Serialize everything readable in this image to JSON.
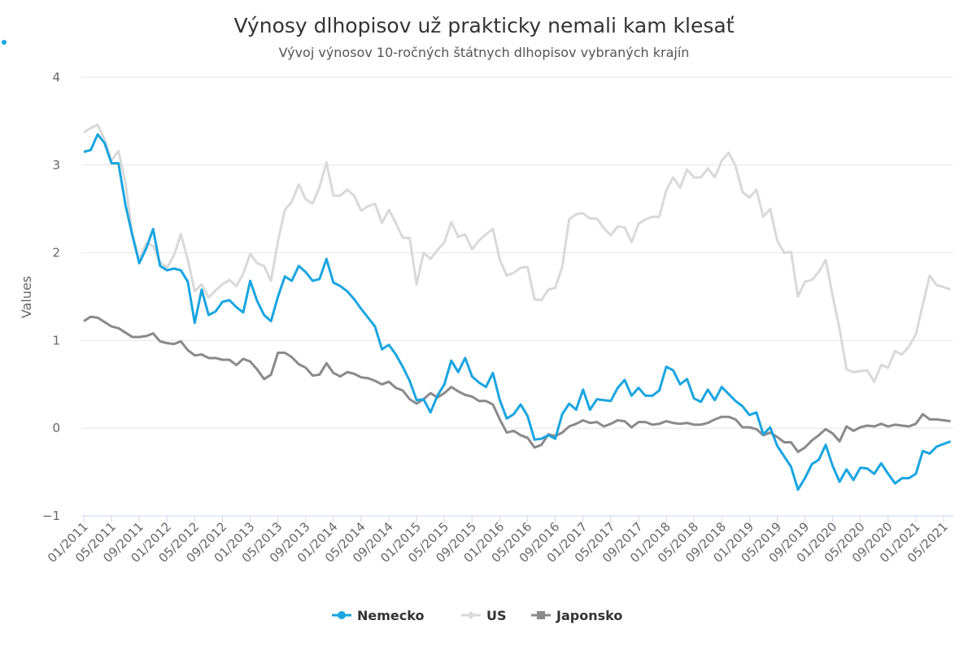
{
  "chart_data": {
    "type": "line",
    "title": "Výnosy dlhopisov už prakticky nemali kam klesať",
    "subtitle": "Vývoj výnosov 10-ročných štátnych dlhopisov vybraných krajín",
    "y_label": "Values",
    "categories": [
      "01/2011",
      null,
      null,
      null,
      "05/2011",
      null,
      null,
      null,
      "09/2011",
      null,
      null,
      null,
      "01/2012",
      null,
      null,
      null,
      "05/2012",
      null,
      null,
      null,
      "09/2012",
      null,
      null,
      null,
      "01/2013",
      null,
      null,
      null,
      "05/2013",
      null,
      null,
      null,
      "09/2013",
      null,
      null,
      null,
      "01/2014",
      null,
      null,
      null,
      "05/2014",
      null,
      null,
      null,
      "09/2014",
      null,
      null,
      null,
      "01/2015",
      null,
      null,
      null,
      "05/2015",
      null,
      null,
      null,
      "09/2015",
      null,
      null,
      null,
      "01/2016",
      null,
      null,
      null,
      "05/2016",
      null,
      null,
      null,
      "09/2016",
      null,
      null,
      null,
      "01/2017",
      null,
      null,
      null,
      "05/2017",
      null,
      null,
      null,
      "09/2017",
      null,
      null,
      null,
      "01/2018",
      null,
      null,
      null,
      "05/2018",
      null,
      null,
      null,
      "09/2018",
      null,
      null,
      null,
      "01/2019",
      null,
      null,
      null,
      "05/2019",
      null,
      null,
      null,
      "09/2019",
      null,
      null,
      null,
      "01/2020",
      null,
      null,
      null,
      "05/2020",
      null,
      null,
      null,
      "09/2020",
      null,
      null,
      null,
      "01/2021",
      null,
      null,
      null,
      "05/2021",
      null
    ],
    "series": [
      {
        "name": "Nemecko",
        "color": "#1aa5e0",
        "marker": "circle",
        "values": [
          3.15,
          3.17,
          3.35,
          3.25,
          3.02,
          3.02,
          2.55,
          2.2,
          1.88,
          2.05,
          2.27,
          1.85,
          1.8,
          1.82,
          1.8,
          1.67,
          1.2,
          1.58,
          1.29,
          1.33,
          1.44,
          1.46,
          1.38,
          1.32,
          1.68,
          1.45,
          1.29,
          1.22,
          1.5,
          1.73,
          1.68,
          1.85,
          1.78,
          1.68,
          1.7,
          1.93,
          1.66,
          1.62,
          1.56,
          1.47,
          1.36,
          1.26,
          1.16,
          0.9,
          0.95,
          0.84,
          0.7,
          0.54,
          0.32,
          0.33,
          0.18,
          0.37,
          0.5,
          0.77,
          0.64,
          0.8,
          0.59,
          0.52,
          0.47,
          0.63,
          0.32,
          0.11,
          0.16,
          0.27,
          0.14,
          -0.13,
          -0.12,
          -0.08,
          -0.12,
          0.16,
          0.28,
          0.21,
          0.44,
          0.21,
          0.33,
          0.32,
          0.31,
          0.46,
          0.55,
          0.37,
          0.46,
          0.37,
          0.37,
          0.43,
          0.7,
          0.66,
          0.5,
          0.56,
          0.34,
          0.3,
          0.44,
          0.32,
          0.47,
          0.39,
          0.31,
          0.25,
          0.15,
          0.18,
          -0.07,
          0.01,
          -0.2,
          -0.32,
          -0.44,
          -0.7,
          -0.57,
          -0.41,
          -0.36,
          -0.19,
          -0.43,
          -0.61,
          -0.47,
          -0.59,
          -0.45,
          -0.46,
          -0.52,
          -0.4,
          -0.52,
          -0.63,
          -0.57,
          -0.57,
          -0.52,
          -0.26,
          -0.29,
          -0.21,
          -0.18,
          -0.15
        ]
      },
      {
        "name": "US",
        "color": "#d9d9d9",
        "marker": "diamond",
        "values": [
          3.37,
          3.42,
          3.46,
          3.29,
          3.05,
          3.16,
          2.8,
          2.22,
          1.92,
          2.11,
          2.08,
          1.89,
          1.83,
          1.97,
          2.21,
          1.92,
          1.56,
          1.64,
          1.49,
          1.57,
          1.64,
          1.69,
          1.62,
          1.76,
          1.99,
          1.88,
          1.85,
          1.68,
          2.13,
          2.49,
          2.58,
          2.78,
          2.61,
          2.56,
          2.75,
          3.03,
          2.65,
          2.65,
          2.72,
          2.65,
          2.48,
          2.53,
          2.56,
          2.34,
          2.49,
          2.34,
          2.17,
          2.17,
          1.64,
          2.0,
          1.93,
          2.03,
          2.12,
          2.35,
          2.18,
          2.21,
          2.04,
          2.14,
          2.21,
          2.27,
          1.92,
          1.74,
          1.77,
          1.83,
          1.84,
          1.47,
          1.46,
          1.58,
          1.6,
          1.84,
          2.38,
          2.44,
          2.45,
          2.39,
          2.39,
          2.28,
          2.2,
          2.3,
          2.29,
          2.12,
          2.33,
          2.38,
          2.41,
          2.41,
          2.71,
          2.86,
          2.74,
          2.95,
          2.86,
          2.86,
          2.96,
          2.86,
          3.05,
          3.14,
          2.99,
          2.69,
          2.63,
          2.72,
          2.41,
          2.5,
          2.14,
          2.0,
          2.01,
          1.5,
          1.67,
          1.69,
          1.78,
          1.92,
          1.51,
          1.13,
          0.67,
          0.64,
          0.65,
          0.66,
          0.53,
          0.72,
          0.69,
          0.88,
          0.84,
          0.93,
          1.07,
          1.41,
          1.74,
          1.63,
          1.61,
          1.58
        ]
      },
      {
        "name": "Japonsko",
        "color": "#8a8a8c",
        "marker": "square",
        "values": [
          1.22,
          1.27,
          1.26,
          1.21,
          1.16,
          1.14,
          1.09,
          1.04,
          1.04,
          1.05,
          1.08,
          0.99,
          0.97,
          0.96,
          0.99,
          0.89,
          0.83,
          0.84,
          0.8,
          0.8,
          0.78,
          0.78,
          0.72,
          0.79,
          0.76,
          0.67,
          0.56,
          0.61,
          0.86,
          0.86,
          0.81,
          0.73,
          0.69,
          0.6,
          0.61,
          0.74,
          0.63,
          0.59,
          0.64,
          0.62,
          0.58,
          0.57,
          0.54,
          0.5,
          0.53,
          0.46,
          0.43,
          0.33,
          0.28,
          0.33,
          0.4,
          0.35,
          0.4,
          0.47,
          0.42,
          0.38,
          0.36,
          0.31,
          0.31,
          0.27,
          0.1,
          -0.05,
          -0.03,
          -0.08,
          -0.11,
          -0.22,
          -0.19,
          -0.07,
          -0.09,
          -0.05,
          0.02,
          0.05,
          0.09,
          0.06,
          0.07,
          0.02,
          0.05,
          0.09,
          0.08,
          0.01,
          0.07,
          0.07,
          0.04,
          0.05,
          0.08,
          0.06,
          0.05,
          0.06,
          0.04,
          0.04,
          0.06,
          0.1,
          0.13,
          0.13,
          0.1,
          0.01,
          0.01,
          -0.01,
          -0.08,
          -0.05,
          -0.1,
          -0.16,
          -0.16,
          -0.27,
          -0.22,
          -0.14,
          -0.08,
          -0.01,
          -0.06,
          -0.15,
          0.02,
          -0.03,
          0.01,
          0.03,
          0.02,
          0.05,
          0.02,
          0.04,
          0.03,
          0.02,
          0.05,
          0.16,
          0.1,
          0.1,
          0.09,
          0.08
        ]
      }
    ],
    "ylim": [
      -1,
      4
    ],
    "yticks": [
      {
        "value": -1,
        "label": "−1"
      },
      0,
      1,
      2,
      3,
      4
    ],
    "grid": true
  }
}
